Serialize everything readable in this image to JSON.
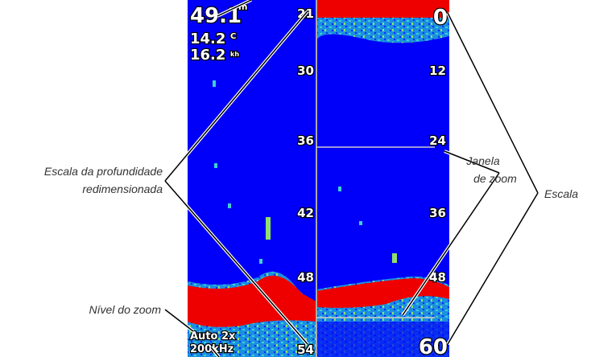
{
  "screen": {
    "readings": [
      {
        "value": "49.1",
        "unit": "m"
      },
      {
        "value": "14.2",
        "unit": "C"
      },
      {
        "value": "16.2",
        "unit": "kh"
      }
    ],
    "left_scale": [
      "21",
      "30",
      "36",
      "42",
      "48",
      "54"
    ],
    "right_scale": [
      "0",
      "12",
      "24",
      "36",
      "48",
      "60"
    ],
    "zoom_level": "Auto 2x",
    "frequency": "200kHz"
  },
  "callouts": {
    "depth_scale": [
      "Escala da profundidade",
      "redimensionada"
    ],
    "zoom_window": [
      "Janela",
      "de zoom"
    ],
    "scale": "Escala",
    "zoom_level": "Nível do zoom"
  }
}
